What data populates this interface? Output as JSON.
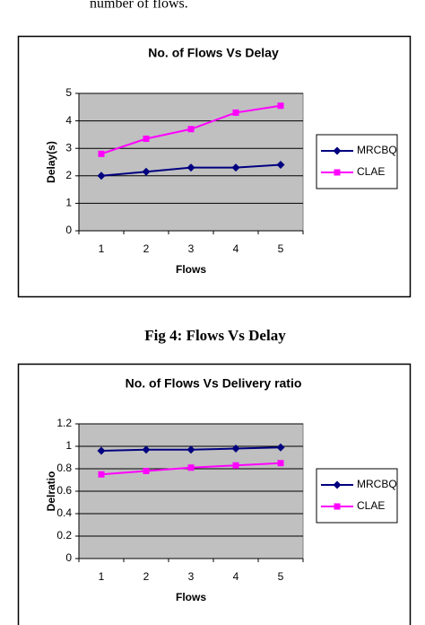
{
  "top_text": "number of flows.",
  "caption": "Fig 4: Flows Vs Delay",
  "chart_data": [
    {
      "type": "line",
      "title": "No. of Flows Vs Delay",
      "x_label": "Flows",
      "y_label": "Delay(s)",
      "categories": [
        "1",
        "2",
        "3",
        "4",
        "5"
      ],
      "ylim": [
        0,
        5
      ],
      "yticks": [
        0,
        1,
        2,
        3,
        4,
        5
      ],
      "grid": true,
      "legend": "right",
      "plot_background": "#c0c0c0",
      "series": [
        {
          "name": "MRCBQ",
          "color": "#000080",
          "marker": "diamond",
          "values": [
            2,
            2.15,
            2.3,
            2.3,
            2.4
          ]
        },
        {
          "name": "CLAE",
          "color": "#ff00ff",
          "marker": "square",
          "values": [
            2.8,
            3.35,
            3.7,
            4.3,
            4.55
          ]
        }
      ]
    },
    {
      "type": "line",
      "title": "No. of Flows Vs Delivery ratio",
      "x_label": "Flows",
      "y_label": "Delratio",
      "categories": [
        "1",
        "2",
        "3",
        "4",
        "5"
      ],
      "ylim": [
        0,
        1.2
      ],
      "yticks": [
        0,
        0.2,
        0.4,
        0.6,
        0.8,
        1,
        1.2
      ],
      "grid": true,
      "legend": "right",
      "plot_background": "#c0c0c0",
      "series": [
        {
          "name": "MRCBQ",
          "color": "#000080",
          "marker": "diamond",
          "values": [
            0.96,
            0.97,
            0.97,
            0.98,
            0.99
          ]
        },
        {
          "name": "CLAE",
          "color": "#ff00ff",
          "marker": "square",
          "values": [
            0.75,
            0.78,
            0.81,
            0.83,
            0.85
          ]
        }
      ]
    }
  ]
}
